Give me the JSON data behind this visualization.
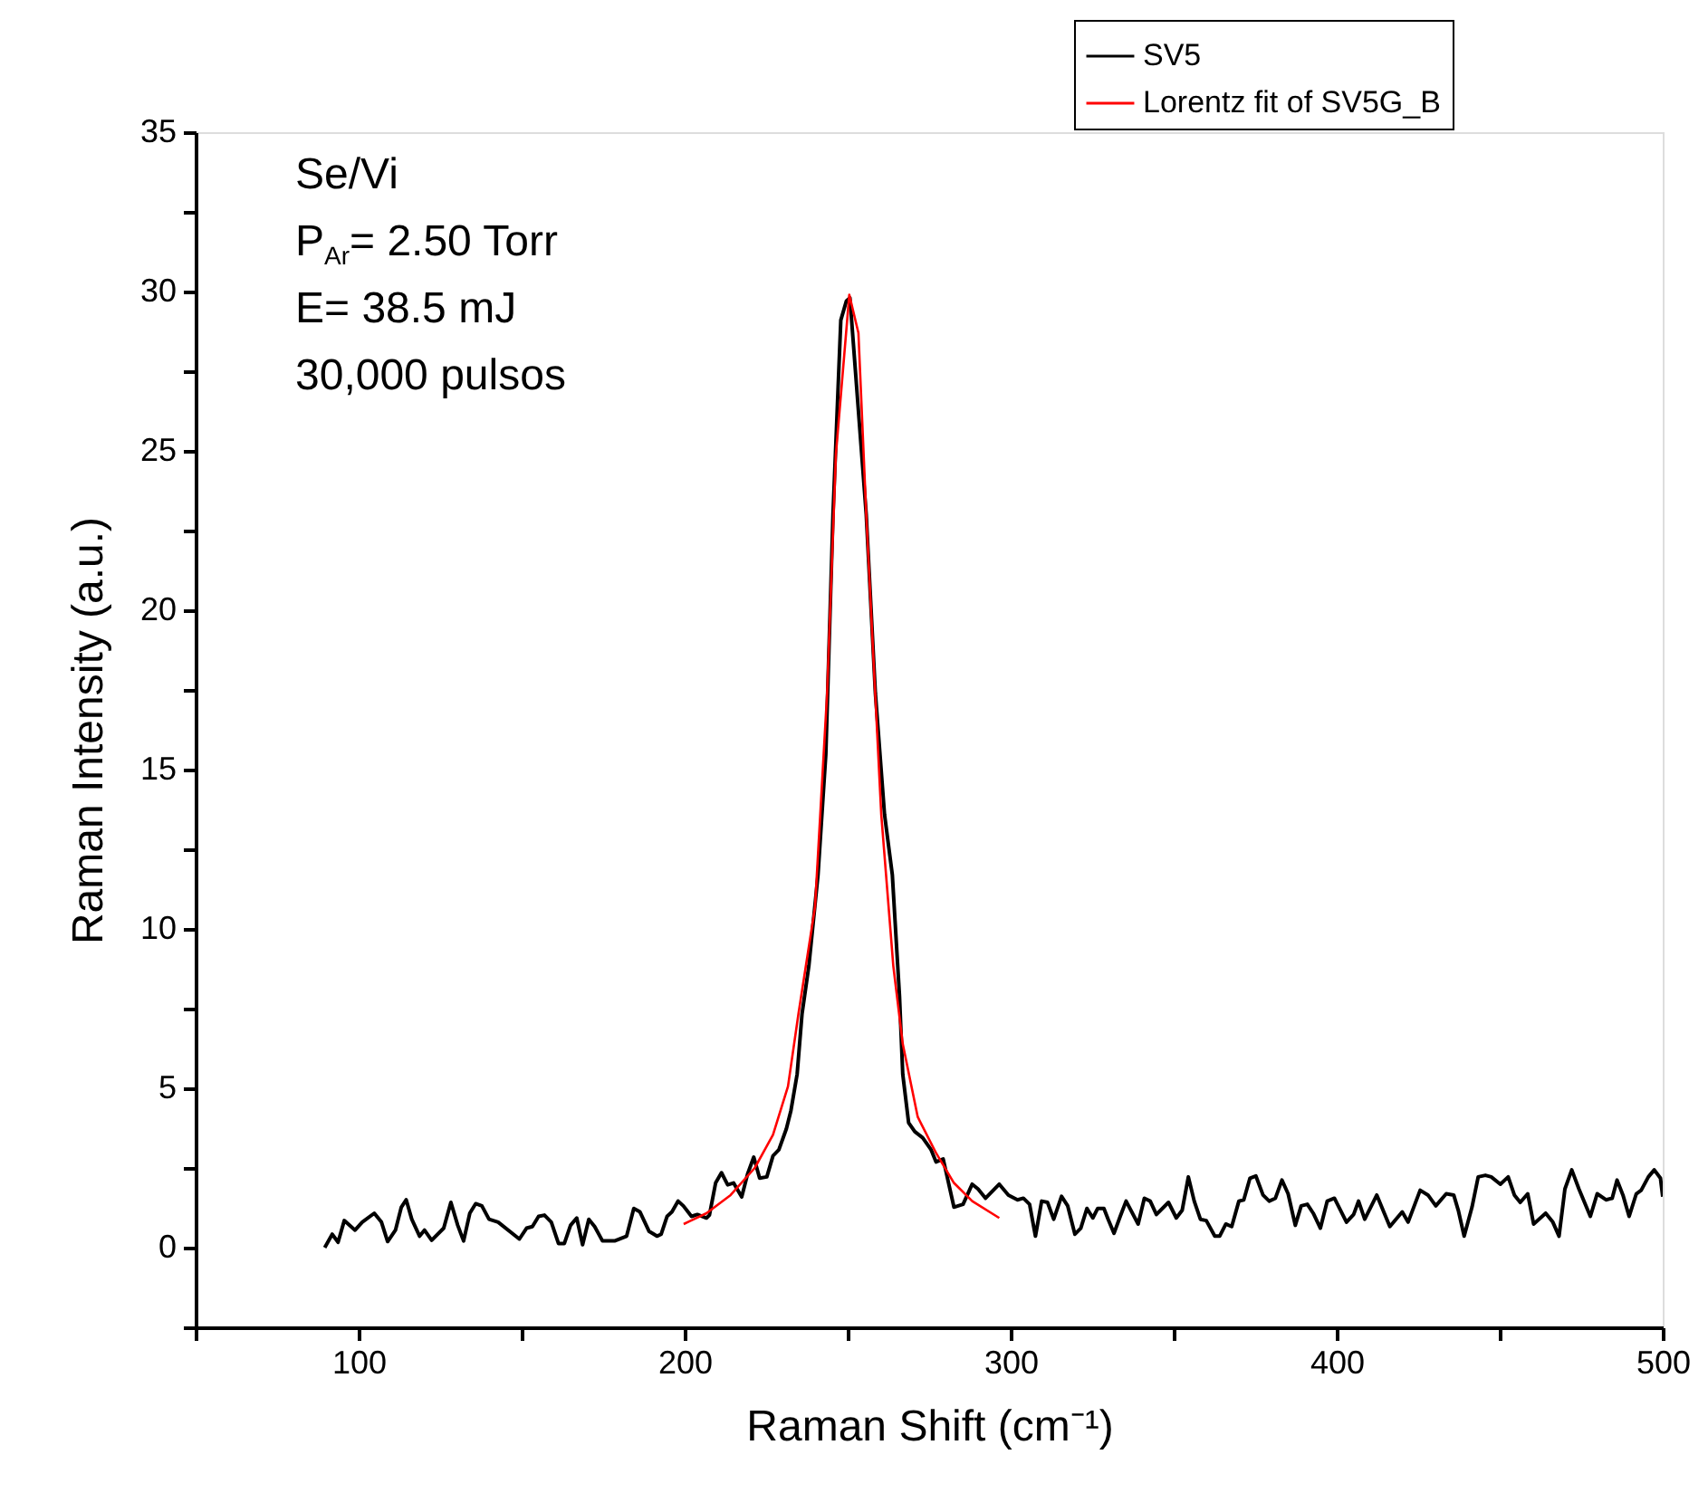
{
  "chart_data": {
    "type": "line",
    "xlabel": "Raman Shift (cm⁻¹)",
    "ylabel": "Raman Intensity (a.u.)",
    "annotations": [
      "Se/Vi",
      "P$_{Ar}$= 2.50 Torr",
      "E= 38.5 mJ",
      "30,000 pulsos"
    ],
    "xlim": [
      50,
      500
    ],
    "ylim": [
      -2.5,
      35
    ],
    "xticks": [
      {
        "value": 50,
        "label": null
      },
      100,
      {
        "value": 150,
        "label": null
      },
      200,
      {
        "value": 250,
        "label": null
      },
      300,
      {
        "value": 350,
        "label": null
      },
      400,
      {
        "value": 450,
        "label": null
      },
      500
    ],
    "yticks": [
      {
        "value": -2.5,
        "label": null
      },
      0,
      {
        "value": 2.5,
        "label": null
      },
      5,
      {
        "value": 7.5,
        "label": null
      },
      10,
      {
        "value": 12.5,
        "label": null
      },
      15,
      {
        "value": 17.5,
        "label": null
      },
      20,
      {
        "value": 22.5,
        "label": null
      },
      25,
      {
        "value": 27.5,
        "label": null
      },
      30,
      {
        "value": 32.5,
        "label": null
      },
      35
    ],
    "grid": false,
    "legend": "top right",
    "marker": "none",
    "line_style": "solid",
    "series": [
      {
        "name": "SV5",
        "color": "#000000",
        "x": [
          89.6,
          91.9,
          93.7,
          95.6,
          98.9,
          101.1,
          104.8,
          107,
          108.9,
          111.3,
          113.1,
          114.6,
          116.3,
          118.7,
          120.2,
          122.4,
          126.1,
          128.3,
          130.4,
          132.2,
          134.1,
          135.9,
          137.8,
          140,
          142.8,
          149.3,
          151.5,
          153.3,
          155.2,
          157,
          159.1,
          161.3,
          163.1,
          165,
          166.9,
          168.7,
          170.6,
          172.4,
          174.8,
          178.5,
          182.2,
          184.4,
          186.3,
          189.1,
          191.5,
          192.8,
          194.6,
          196.1,
          198,
          199.6,
          202.1,
          203.9,
          206.7,
          207.6,
          209.5,
          211.3,
          213.2,
          215,
          217.5,
          219.3,
          221.2,
          223,
          225.2,
          227.1,
          228.9,
          231.2,
          232.6,
          234.5,
          236,
          238.1,
          240.9,
          243.3,
          245.5,
          247.9,
          249.6,
          250.7,
          252.9,
          255.7,
          258.5,
          261.3,
          263.7,
          265.9,
          266.9,
          268.7,
          270.6,
          273,
          275.6,
          277.1,
          279.3,
          282.6,
          285.4,
          288.2,
          290,
          292.3,
          296.5,
          299.3,
          302.1,
          303.9,
          305.8,
          307.6,
          309.5,
          311.3,
          313.2,
          315.6,
          317.5,
          319.7,
          321.5,
          323.4,
          325.2,
          326.7,
          328.6,
          329.9,
          331.7,
          333.6,
          335.4,
          339.1,
          341,
          342.8,
          344.7,
          348.4,
          350.8,
          352.6,
          354.5,
          356.3,
          358.2,
          360,
          362.6,
          364.1,
          366,
          367.8,
          370,
          371.5,
          373.4,
          375.2,
          377.4,
          379.3,
          381.2,
          383.2,
          385.1,
          387.3,
          389.1,
          391,
          392.8,
          395,
          397.1,
          399.3,
          403,
          405.2,
          406.7,
          408.6,
          412.3,
          416.3,
          420.1,
          421.9,
          425.6,
          428,
          430.4,
          433.6,
          435.9,
          437.3,
          439.1,
          441.5,
          443.4,
          445.6,
          447.4,
          450.2,
          452.6,
          454.5,
          456.3,
          458.6,
          460.4,
          464.1,
          466.3,
          468.2,
          470,
          472.1,
          474.3,
          477.8,
          479.9,
          482.6,
          484.5,
          486,
          487.8,
          489.7,
          491.9,
          493.4,
          495.6,
          497.4,
          499.3,
          500
        ],
        "values": [
          0.0,
          0.42,
          0.17,
          0.85,
          0.55,
          0.8,
          1.08,
          0.8,
          0.19,
          0.55,
          1.27,
          1.5,
          0.89,
          0.36,
          0.55,
          0.23,
          0.61,
          1.42,
          0.7,
          0.21,
          1.08,
          1.38,
          1.31,
          0.89,
          0.8,
          0.27,
          0.61,
          0.66,
          0.98,
          1.02,
          0.8,
          0.13,
          0.13,
          0.7,
          0.93,
          0.09,
          0.89,
          0.66,
          0.21,
          0.21,
          0.36,
          1.23,
          1.12,
          0.51,
          0.36,
          0.42,
          0.98,
          1.12,
          1.46,
          1.31,
          0.98,
          1.04,
          0.93,
          1.02,
          2.03,
          2.35,
          1.97,
          2.03,
          1.59,
          2.31,
          2.84,
          2.18,
          2.22,
          2.88,
          3.07,
          3.73,
          4.3,
          5.44,
          7.33,
          8.84,
          11.69,
          15.47,
          23,
          29.1,
          29.7,
          29.8,
          26.8,
          23,
          17.4,
          13.6,
          11.7,
          7.9,
          5.44,
          3.92,
          3.64,
          3.45,
          3.07,
          2.69,
          2.78,
          1.27,
          1.36,
          1.99,
          1.84,
          1.55,
          1.99,
          1.65,
          1.5,
          1.55,
          1.36,
          0.36,
          1.46,
          1.42,
          0.89,
          1.61,
          1.31,
          0.42,
          0.61,
          1.23,
          0.93,
          1.23,
          1.23,
          0.89,
          0.45,
          0.98,
          1.46,
          0.74,
          1.55,
          1.46,
          1.04,
          1.42,
          0.93,
          1.17,
          2.22,
          1.46,
          0.89,
          0.85,
          0.36,
          0.36,
          0.74,
          0.66,
          1.46,
          1.5,
          2.18,
          2.25,
          1.65,
          1.46,
          1.55,
          2.12,
          1.69,
          0.7,
          1.31,
          1.36,
          1.08,
          0.61,
          1.46,
          1.55,
          0.8,
          1.04,
          1.46,
          0.89,
          1.65,
          0.66,
          1.12,
          0.8,
          1.8,
          1.65,
          1.31,
          1.69,
          1.65,
          1.17,
          0.36,
          1.27,
          2.22,
          2.27,
          2.22,
          1.99,
          2.22,
          1.65,
          1.42,
          1.69,
          0.74,
          1.08,
          0.8,
          0.36,
          1.84,
          2.44,
          1.84,
          0.98,
          1.69,
          1.5,
          1.55,
          2.12,
          1.65,
          0.98,
          1.69,
          1.8,
          2.22,
          2.44,
          2.18,
          1.6
        ]
      },
      {
        "name": "Lorentz fit of SV5G_B",
        "color": "#ff0000",
        "x": [
          199.7,
          206.7,
          214.1,
          221.5,
          227.1,
          231.7,
          234.9,
          240,
          243.7,
          246.4,
          250.5,
          253.3,
          255.7,
          260.3,
          264,
          266.9,
          271.5,
          277.1,
          282.6,
          288.2,
          296.5
        ],
        "values": [
          0.74,
          1.08,
          1.65,
          2.5,
          3.54,
          5.06,
          7.33,
          10.7,
          17.4,
          24.9,
          29.9,
          28.7,
          23,
          13.6,
          8.84,
          6.39,
          4.1,
          2.97,
          2.03,
          1.46,
          0.93
        ]
      }
    ]
  }
}
